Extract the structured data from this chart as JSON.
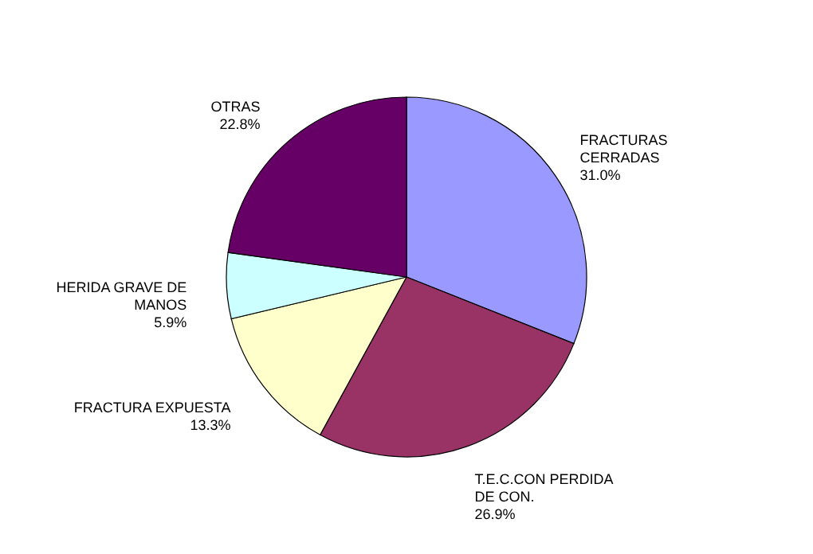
{
  "chart_data": {
    "type": "pie",
    "categories": [
      "FRACTURAS CERRADAS",
      "T.E.C.CON PERDIDA DE CON.",
      "FRACTURA EXPUESTA",
      "HERIDA GRAVE DE MANOS",
      "OTRAS"
    ],
    "values": [
      31.0,
      26.9,
      13.3,
      5.9,
      22.8
    ],
    "colors": [
      "#9999ff",
      "#993366",
      "#ffffcc",
      "#ccffff",
      "#660066"
    ],
    "value_labels": [
      "31.0%",
      "26.9%",
      "13.3%",
      "5.9%",
      "22.8%"
    ],
    "legend": false
  }
}
